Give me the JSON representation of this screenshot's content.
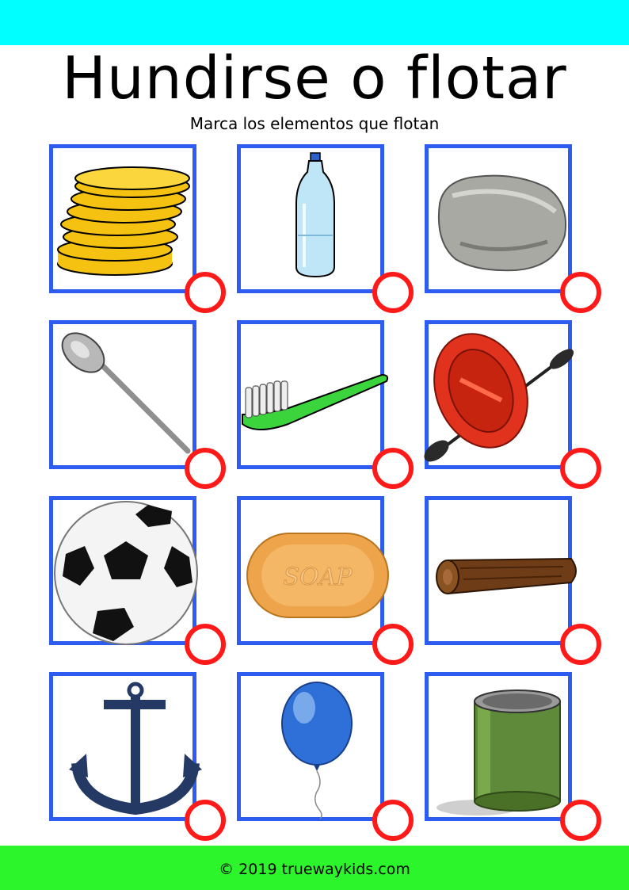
{
  "header": {
    "title": "Hundirse o flotar",
    "subtitle": "Marca los elementos que flotan"
  },
  "colors": {
    "top_bar": "#00ffff",
    "card_border": "#2e5cf0",
    "check_circle": "#ff1a1a",
    "bottom_bar": "#2cf52c"
  },
  "items": [
    {
      "icon": "coins-icon"
    },
    {
      "icon": "plastic-bottle-icon"
    },
    {
      "icon": "rock-icon"
    },
    {
      "icon": "spoon-icon"
    },
    {
      "icon": "toothbrush-icon"
    },
    {
      "icon": "inflatable-raft-icon"
    },
    {
      "icon": "soccer-ball-icon"
    },
    {
      "icon": "soap-bar-icon",
      "label": "SOAP"
    },
    {
      "icon": "wooden-log-icon"
    },
    {
      "icon": "anchor-icon"
    },
    {
      "icon": "balloon-icon"
    },
    {
      "icon": "tin-can-icon"
    }
  ],
  "footer": {
    "copyright": "© 2019 truewaykids.com"
  }
}
